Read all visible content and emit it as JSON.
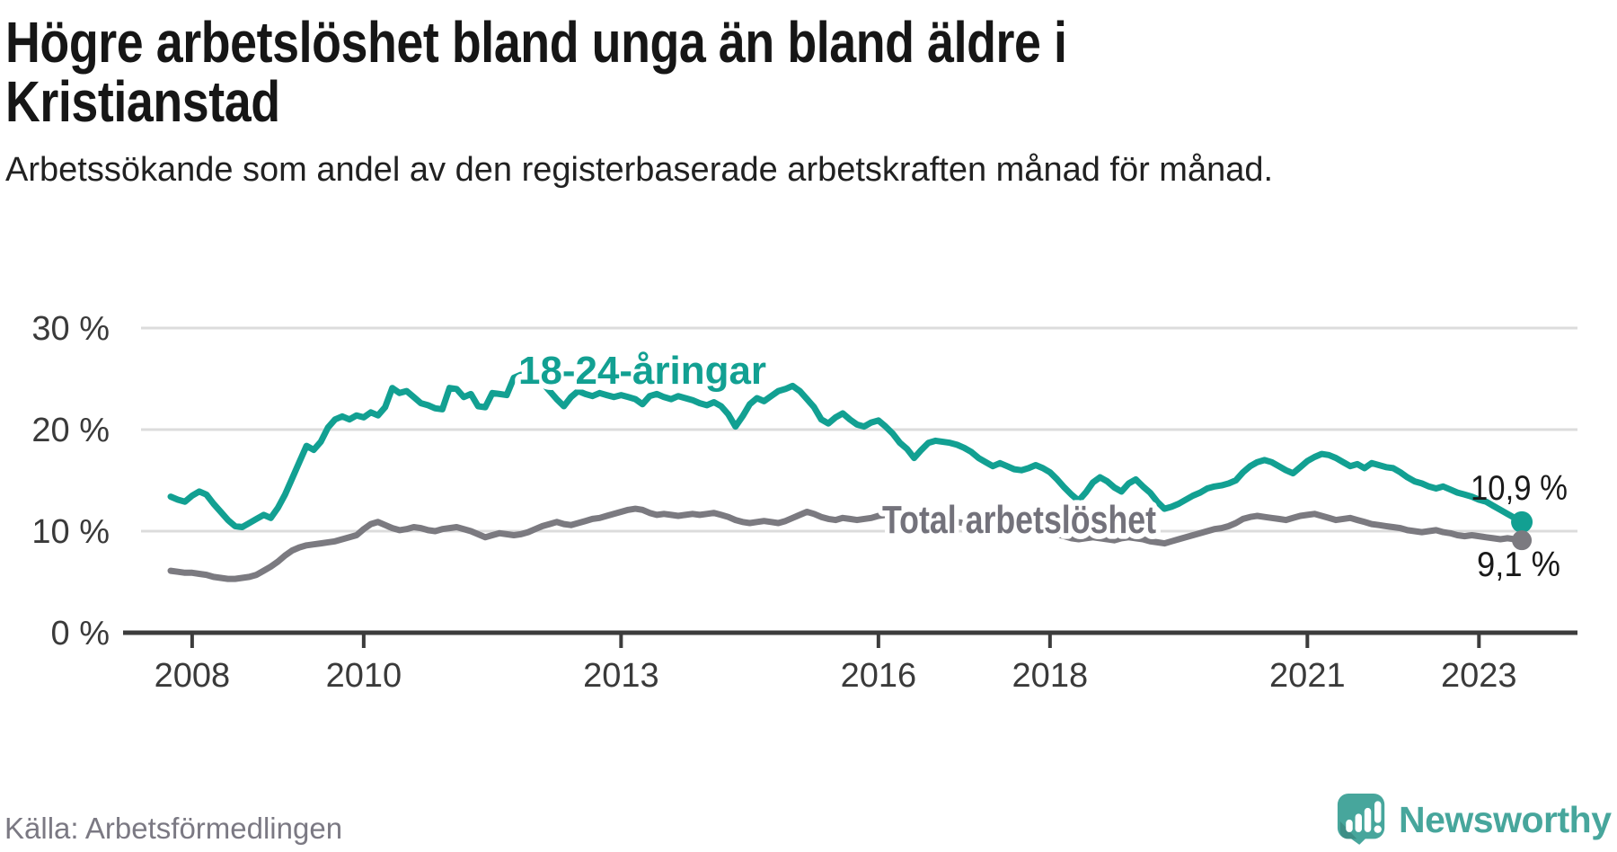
{
  "chart_data": {
    "type": "line",
    "title": "Högre arbetslöshet bland unga än bland äldre i Kristianstad",
    "subtitle": "Arbetssökande som andel av den registerbaserade arbetskraften månad för månad.",
    "unit": "%",
    "frequency": "monthly",
    "x_start": "2007-10",
    "x_end": "2023-07",
    "x_ticks": [
      2008,
      2010,
      2013,
      2016,
      2018,
      2021,
      2023
    ],
    "x_tick_labels": [
      "2008",
      "2010",
      "2013",
      "2016",
      "2018",
      "2021",
      "2023"
    ],
    "y_ticks": [
      0,
      10,
      20,
      30
    ],
    "y_tick_labels": [
      "0 %",
      "10 %",
      "20 %",
      "30 %"
    ],
    "ylim": [
      0,
      32
    ],
    "grid": "horizontal-only",
    "legend_position": "inline-labels-on-lines",
    "series": [
      {
        "name": "18-24-åringar",
        "color": "#12A092",
        "end_value": 10.9,
        "end_label": "10,9 %",
        "values": [
          13.4,
          13.1,
          12.9,
          13.5,
          13.9,
          13.6,
          12.7,
          11.9,
          11.1,
          10.5,
          10.4,
          10.8,
          11.2,
          11.6,
          11.3,
          12.3,
          13.6,
          15.2,
          16.8,
          18.4,
          18.0,
          18.8,
          20.2,
          21.0,
          21.3,
          21.0,
          21.4,
          21.2,
          21.7,
          21.4,
          22.2,
          24.1,
          23.6,
          23.8,
          23.2,
          22.6,
          22.4,
          22.1,
          22.0,
          24.1,
          24.0,
          23.2,
          23.5,
          22.3,
          22.2,
          23.6,
          23.5,
          23.4,
          25.1,
          25.4,
          25.2,
          25.0,
          24.6,
          23.8,
          23.0,
          22.3,
          23.2,
          23.8,
          23.5,
          23.3,
          23.6,
          23.4,
          23.2,
          23.4,
          23.2,
          23.0,
          22.5,
          23.3,
          23.5,
          23.2,
          23.0,
          23.3,
          23.1,
          22.9,
          22.6,
          22.4,
          22.7,
          22.3,
          21.5,
          20.3,
          21.3,
          22.5,
          23.1,
          22.8,
          23.3,
          23.8,
          24.0,
          24.3,
          23.8,
          23.0,
          22.2,
          21.0,
          20.6,
          21.2,
          21.6,
          21.0,
          20.5,
          20.3,
          20.7,
          20.9,
          20.3,
          19.6,
          18.7,
          18.1,
          17.2,
          18.0,
          18.7,
          18.9,
          18.8,
          18.7,
          18.5,
          18.2,
          17.8,
          17.2,
          16.8,
          16.4,
          16.7,
          16.4,
          16.1,
          16.0,
          16.2,
          16.5,
          16.2,
          15.8,
          15.1,
          14.3,
          13.6,
          13.0,
          13.8,
          14.8,
          15.3,
          14.9,
          14.3,
          13.9,
          14.7,
          15.1,
          14.4,
          13.8,
          12.9,
          12.2,
          12.4,
          12.7,
          13.1,
          13.5,
          13.8,
          14.2,
          14.4,
          14.5,
          14.7,
          15.0,
          15.8,
          16.4,
          16.8,
          17.0,
          16.8,
          16.4,
          16.0,
          15.7,
          16.3,
          16.9,
          17.3,
          17.6,
          17.5,
          17.2,
          16.8,
          16.4,
          16.6,
          16.2,
          16.7,
          16.5,
          16.3,
          16.2,
          15.8,
          15.3,
          14.9,
          14.7,
          14.4,
          14.2,
          14.4,
          14.1,
          13.8,
          13.6,
          13.4,
          13.1,
          12.9,
          12.5,
          12.1,
          11.7,
          11.3,
          10.9
        ]
      },
      {
        "name": "Total arbetslöshet",
        "color": "#7B7A80",
        "end_value": 9.1,
        "end_label": "9,1 %",
        "values": [
          6.1,
          6.0,
          5.9,
          5.9,
          5.8,
          5.7,
          5.5,
          5.4,
          5.3,
          5.3,
          5.4,
          5.5,
          5.7,
          6.1,
          6.5,
          7.0,
          7.6,
          8.1,
          8.4,
          8.6,
          8.7,
          8.8,
          8.9,
          9.0,
          9.2,
          9.4,
          9.6,
          10.2,
          10.7,
          10.9,
          10.6,
          10.3,
          10.1,
          10.2,
          10.4,
          10.3,
          10.1,
          10.0,
          10.2,
          10.3,
          10.4,
          10.2,
          10.0,
          9.7,
          9.4,
          9.6,
          9.8,
          9.7,
          9.6,
          9.7,
          9.9,
          10.2,
          10.5,
          10.7,
          10.9,
          10.7,
          10.6,
          10.8,
          11.0,
          11.2,
          11.3,
          11.5,
          11.7,
          11.9,
          12.1,
          12.2,
          12.1,
          11.8,
          11.6,
          11.7,
          11.6,
          11.5,
          11.6,
          11.7,
          11.6,
          11.7,
          11.8,
          11.6,
          11.4,
          11.1,
          10.9,
          10.8,
          10.9,
          11.0,
          10.9,
          10.8,
          11.0,
          11.3,
          11.6,
          11.9,
          11.7,
          11.4,
          11.2,
          11.1,
          11.3,
          11.2,
          11.1,
          11.2,
          11.3,
          11.5,
          11.6,
          11.4,
          11.2,
          11.0,
          10.9,
          11.0,
          11.1,
          11.0,
          10.9,
          10.8,
          10.9,
          10.8,
          10.7,
          10.5,
          10.3,
          10.2,
          10.3,
          10.2,
          10.1,
          10.0,
          10.1,
          10.0,
          9.9,
          9.8,
          9.7,
          9.5,
          9.3,
          9.2,
          9.3,
          9.4,
          9.3,
          9.2,
          9.1,
          9.3,
          9.4,
          9.3,
          9.2,
          9.0,
          8.9,
          8.8,
          9.0,
          9.2,
          9.4,
          9.6,
          9.8,
          10.0,
          10.2,
          10.3,
          10.5,
          10.8,
          11.2,
          11.4,
          11.5,
          11.4,
          11.3,
          11.2,
          11.1,
          11.3,
          11.5,
          11.6,
          11.7,
          11.5,
          11.3,
          11.1,
          11.2,
          11.3,
          11.1,
          10.9,
          10.7,
          10.6,
          10.5,
          10.4,
          10.3,
          10.1,
          10.0,
          9.9,
          10.0,
          10.1,
          9.9,
          9.8,
          9.6,
          9.5,
          9.6,
          9.5,
          9.4,
          9.3,
          9.2,
          9.3,
          9.2,
          9.1
        ]
      }
    ]
  },
  "footer": {
    "source_label": "Källa: Arbetsförmedlingen",
    "brand_name": "Newsworthy",
    "brand_icon": "newsworthy-speech-bubble-bar-chart-icon"
  },
  "colors": {
    "youth_line": "#12A092",
    "total_line": "#7B7A80",
    "total_label": "#73727B",
    "grid": "#DCDCDC",
    "axis": "#3C3C3C",
    "axis_text": "#3A3A3A",
    "title_text": "#161616",
    "subtitle_text": "#212121",
    "endpoint_text": "#191919",
    "source_text": "#7B7983",
    "brand_teal": "#47A69C"
  }
}
